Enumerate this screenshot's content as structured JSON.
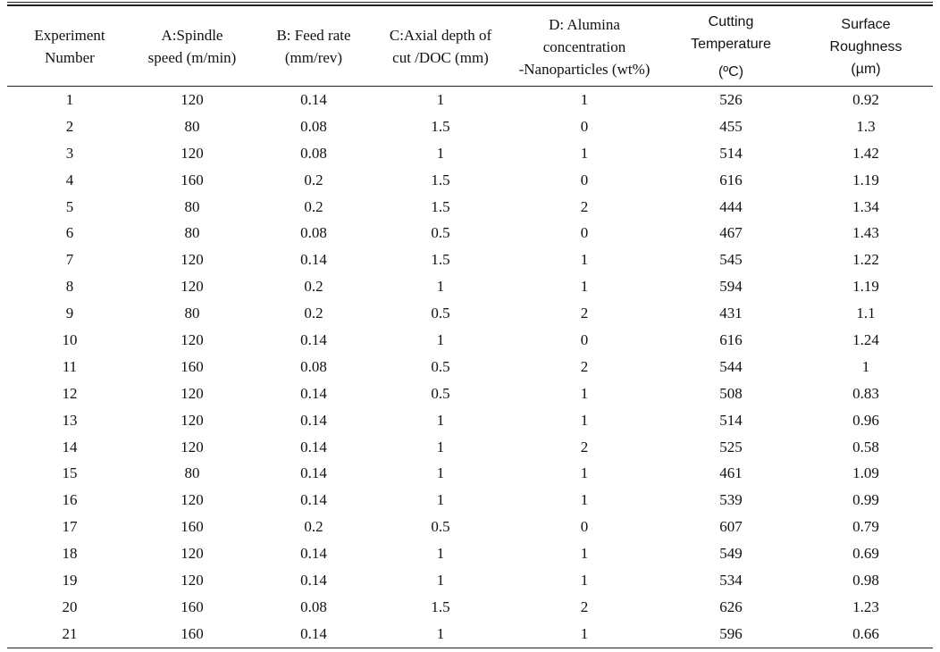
{
  "table": {
    "headers": [
      {
        "lines": [
          "Experiment",
          "Number"
        ]
      },
      {
        "lines": [
          "A:Spindle",
          "speed (m/min)"
        ]
      },
      {
        "lines": [
          "B: Feed rate",
          "(mm/rev)"
        ]
      },
      {
        "lines": [
          "C:Axial depth of",
          "cut /DOC (mm)"
        ]
      },
      {
        "lines": [
          "D: Alumina",
          "concentration",
          "-Nanoparticles (wt%)"
        ]
      },
      {
        "lines": [
          "Cutting",
          "Temperature",
          "(ºC)"
        ]
      },
      {
        "lines": [
          "Surface",
          "Roughness",
          "(µm)"
        ]
      }
    ],
    "rows": [
      [
        "1",
        "120",
        "0.14",
        "1",
        "1",
        "526",
        "0.92"
      ],
      [
        "2",
        "80",
        "0.08",
        "1.5",
        "0",
        "455",
        "1.3"
      ],
      [
        "3",
        "120",
        "0.08",
        "1",
        "1",
        "514",
        "1.42"
      ],
      [
        "4",
        "160",
        "0.2",
        "1.5",
        "0",
        "616",
        "1.19"
      ],
      [
        "5",
        "80",
        "0.2",
        "1.5",
        "2",
        "444",
        "1.34"
      ],
      [
        "6",
        "80",
        "0.08",
        "0.5",
        "0",
        "467",
        "1.43"
      ],
      [
        "7",
        "120",
        "0.14",
        "1.5",
        "1",
        "545",
        "1.22"
      ],
      [
        "8",
        "120",
        "0.2",
        "1",
        "1",
        "594",
        "1.19"
      ],
      [
        "9",
        "80",
        "0.2",
        "0.5",
        "2",
        "431",
        "1.1"
      ],
      [
        "10",
        "120",
        "0.14",
        "1",
        "0",
        "616",
        "1.24"
      ],
      [
        "11",
        "160",
        "0.08",
        "0.5",
        "2",
        "544",
        "1"
      ],
      [
        "12",
        "120",
        "0.14",
        "0.5",
        "1",
        "508",
        "0.83"
      ],
      [
        "13",
        "120",
        "0.14",
        "1",
        "1",
        "514",
        "0.96"
      ],
      [
        "14",
        "120",
        "0.14",
        "1",
        "2",
        "525",
        "0.58"
      ],
      [
        "15",
        "80",
        "0.14",
        "1",
        "1",
        "461",
        "1.09"
      ],
      [
        "16",
        "120",
        "0.14",
        "1",
        "1",
        "539",
        "0.99"
      ],
      [
        "17",
        "160",
        "0.2",
        "0.5",
        "0",
        "607",
        "0.79"
      ],
      [
        "18",
        "120",
        "0.14",
        "1",
        "1",
        "549",
        "0.69"
      ],
      [
        "19",
        "120",
        "0.14",
        "1",
        "1",
        "534",
        "0.98"
      ],
      [
        "20",
        "160",
        "0.08",
        "1.5",
        "2",
        "626",
        "1.23"
      ],
      [
        "21",
        "160",
        "0.14",
        "1",
        "1",
        "596",
        "0.66"
      ]
    ]
  }
}
